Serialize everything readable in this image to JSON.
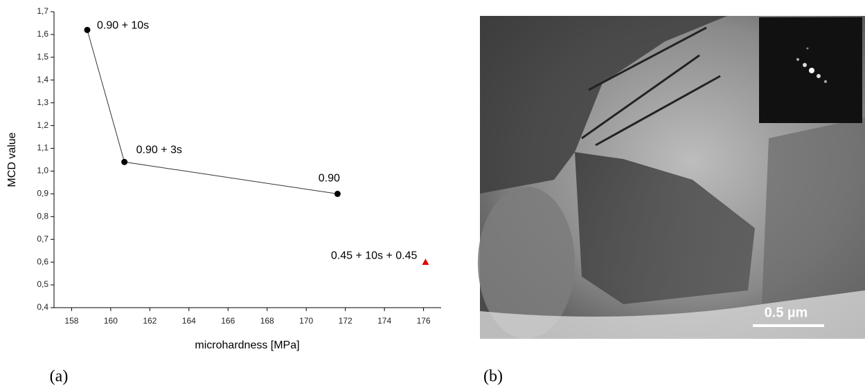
{
  "chart_data": {
    "type": "line",
    "xlabel": "microhardness [MPa]",
    "ylabel": "MCD value",
    "xlim": [
      157.1,
      176.9
    ],
    "ylim": [
      0.4,
      1.7
    ],
    "xticks": [
      158,
      160,
      162,
      164,
      166,
      168,
      170,
      172,
      174,
      176
    ],
    "yticks": [
      {
        "value": 0.4,
        "label": "0,4"
      },
      {
        "value": 0.5,
        "label": "0,5"
      },
      {
        "value": 0.6,
        "label": "0,6"
      },
      {
        "value": 0.7,
        "label": "0,7"
      },
      {
        "value": 0.8,
        "label": "0,8"
      },
      {
        "value": 0.9,
        "label": "0,9"
      },
      {
        "value": 1.0,
        "label": "1,0"
      },
      {
        "value": 1.1,
        "label": "1,1"
      },
      {
        "value": 1.2,
        "label": "1,2"
      },
      {
        "value": 1.3,
        "label": "1,3"
      },
      {
        "value": 1.4,
        "label": "1,4"
      },
      {
        "value": 1.5,
        "label": "1,5"
      },
      {
        "value": 1.6,
        "label": "1,6"
      },
      {
        "value": 1.7,
        "label": "1,7"
      }
    ],
    "series": [
      {
        "color": "#000000",
        "marker": "circle",
        "line": true,
        "x": [
          158.8,
          160.7,
          171.6
        ],
        "values": [
          1.62,
          1.04,
          0.9
        ],
        "point_labels": [
          "0.90 + 10s",
          "0.90 + 3s",
          "0.90"
        ]
      },
      {
        "color": "#e00000",
        "marker": "triangle",
        "line": false,
        "x": [
          176.1
        ],
        "values": [
          0.6
        ],
        "point_labels": [
          "0.45 + 10s + 0.45"
        ]
      }
    ]
  },
  "captions": [
    "(a)",
    "(b)"
  ],
  "micrograph": {
    "scale_bar": "0.5 µm"
  }
}
